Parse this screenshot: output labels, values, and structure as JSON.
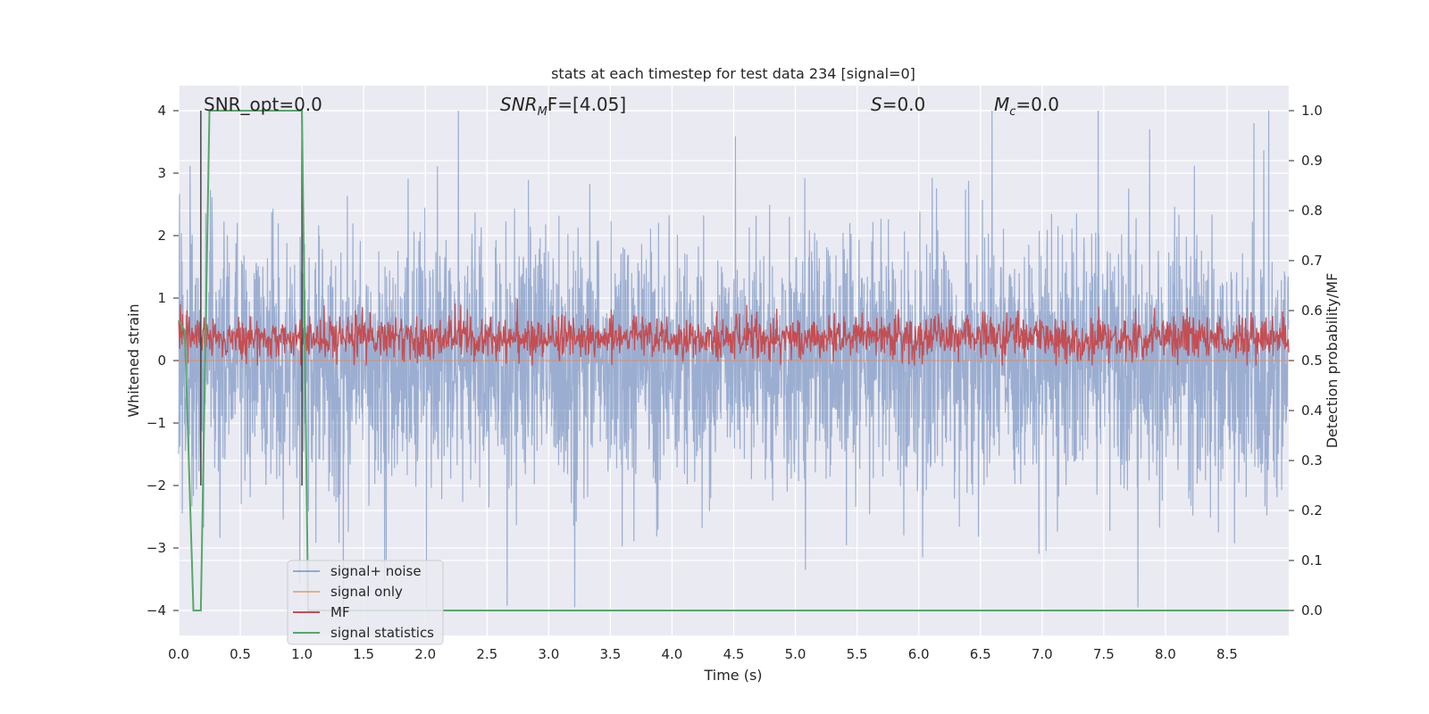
{
  "chart_data": {
    "type": "line",
    "title": "stats at each timestep for test data 234 [signal=0]",
    "xlabel": "Time (s)",
    "ylabel_left": "Whitened strain",
    "ylabel_right": "Detection probability/MF",
    "xlim": [
      0.0,
      9.0
    ],
    "ylim_left": [
      -4.4,
      4.4
    ],
    "ylim_right": [
      -0.05,
      1.05
    ],
    "xticks": [
      "0.0",
      "0.5",
      "1.0",
      "1.5",
      "2.0",
      "2.5",
      "3.0",
      "3.5",
      "4.0",
      "4.5",
      "5.0",
      "5.5",
      "6.0",
      "6.5",
      "7.0",
      "7.5",
      "8.0",
      "8.5"
    ],
    "yticks_left": [
      "4",
      "3",
      "2",
      "1",
      "0",
      "−1",
      "−2",
      "−3",
      "−4"
    ],
    "yticks_right": [
      "1.0",
      "0.9",
      "0.8",
      "0.7",
      "0.6",
      "0.5",
      "0.4",
      "0.3",
      "0.2",
      "0.1",
      "0.0"
    ],
    "grid": true,
    "legend_position": "lower-left",
    "annotations": {
      "snr_opt": "SNR_opt=0.0",
      "snr_mf_label": "SNR",
      "snr_mf_sub": "M",
      "snr_mf_rest": "F=[4.05]",
      "s_label": "S",
      "s_rest": "=0.0",
      "mc_label": "M",
      "mc_sub": "c",
      "mc_rest": "=0.0"
    },
    "vertical_markers_s": [
      0.18,
      1.0
    ],
    "series": [
      {
        "name": "signal+ noise",
        "color": "#4c72b0",
        "axis": "left",
        "description_range": [
          -3.95,
          4.0
        ],
        "typical_envelope": [
          -1.8,
          2.0
        ]
      },
      {
        "name": "signal only",
        "color": "#dd8452",
        "axis": "left",
        "values_constant": 0.0
      },
      {
        "name": "MF",
        "color": "#c44e52",
        "axis": "right",
        "typical_range": [
          0.5,
          0.62
        ],
        "start_value": 0.58
      },
      {
        "name": "signal statistics",
        "color": "#55a868",
        "axis": "right",
        "x": [
          0.0,
          0.05,
          0.12,
          0.18,
          0.25,
          1.0,
          1.05,
          1.1,
          9.0
        ],
        "values": [
          0.58,
          0.56,
          0.0,
          0.0,
          1.0,
          1.0,
          0.0,
          0.0,
          0.0
        ]
      }
    ]
  }
}
